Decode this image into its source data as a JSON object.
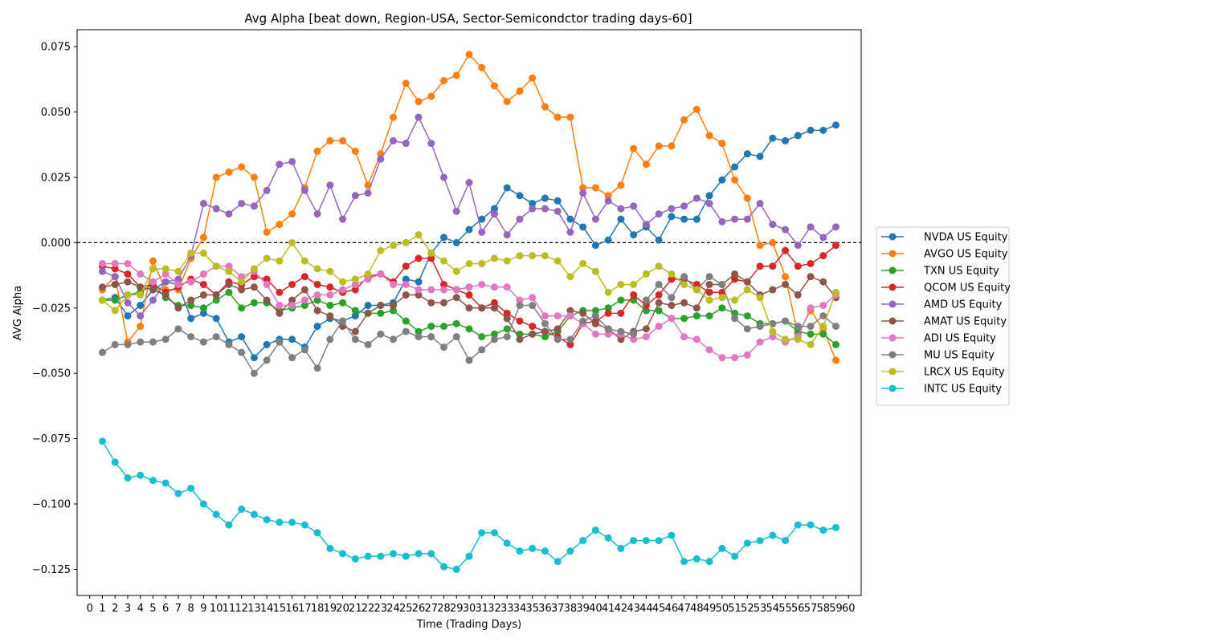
{
  "chart_data": {
    "type": "line",
    "title": "Avg Alpha [beat down, Region-USA, Sector-Semicondctor trading days-60]",
    "xlabel": "Time (Trading Days)",
    "ylabel": "AVG Alpha",
    "xlim": [
      -1,
      61
    ],
    "ylim": [
      -0.135,
      0.0815
    ],
    "xticks": [
      0,
      1,
      2,
      3,
      4,
      5,
      6,
      7,
      8,
      9,
      10,
      11,
      12,
      13,
      14,
      15,
      16,
      17,
      18,
      19,
      20,
      21,
      22,
      23,
      24,
      25,
      26,
      27,
      28,
      29,
      30,
      31,
      32,
      33,
      34,
      35,
      36,
      37,
      38,
      39,
      40,
      41,
      42,
      43,
      44,
      45,
      46,
      47,
      48,
      49,
      50,
      51,
      52,
      53,
      54,
      55,
      56,
      57,
      58,
      59,
      60
    ],
    "yticks": [
      0.075,
      0.05,
      0.025,
      0.0,
      -0.025,
      -0.05,
      -0.075,
      -0.1,
      -0.125
    ],
    "ytick_labels": [
      "0.075",
      "0.050",
      "0.025",
      "0.000",
      "−0.025",
      "−0.050",
      "−0.075",
      "−0.100",
      "−0.125"
    ],
    "reference_line": {
      "y": 0,
      "style": "dashed",
      "color": "#000000"
    },
    "legend_position": "right",
    "grid": false,
    "x": [
      1,
      2,
      3,
      4,
      5,
      6,
      7,
      8,
      9,
      10,
      11,
      12,
      13,
      14,
      15,
      16,
      17,
      18,
      19,
      20,
      21,
      22,
      23,
      24,
      25,
      26,
      27,
      28,
      29,
      30,
      31,
      32,
      33,
      34,
      35,
      36,
      37,
      38,
      39,
      40,
      41,
      42,
      43,
      44,
      45,
      46,
      47,
      48,
      49,
      50,
      51,
      52,
      53,
      54,
      55,
      56,
      57,
      58,
      59
    ],
    "series": [
      {
        "name": "NVDA US Equity",
        "color": "#1f77b4",
        "values": [
          -0.022,
          -0.021,
          -0.028,
          -0.024,
          -0.018,
          -0.015,
          -0.016,
          -0.029,
          -0.027,
          -0.029,
          -0.038,
          -0.036,
          -0.044,
          -0.039,
          -0.037,
          -0.037,
          -0.04,
          -0.032,
          -0.029,
          -0.03,
          -0.028,
          -0.024,
          -0.024,
          -0.023,
          -0.014,
          -0.015,
          -0.004,
          0.002,
          0.0,
          0.005,
          0.009,
          0.013,
          0.021,
          0.018,
          0.015,
          0.017,
          0.016,
          0.009,
          0.006,
          -0.001,
          0.001,
          0.009,
          0.003,
          0.006,
          0.001,
          0.01,
          0.009,
          0.009,
          0.018,
          0.024,
          0.029,
          0.034,
          0.033,
          0.04,
          0.039,
          0.041,
          0.043,
          0.043,
          0.045
        ]
      },
      {
        "name": "AVGO US Equity",
        "color": "#ff7f0e",
        "values": [
          -0.018,
          -0.013,
          -0.038,
          -0.032,
          -0.007,
          -0.018,
          -0.018,
          -0.006,
          0.002,
          0.025,
          0.027,
          0.029,
          0.025,
          0.004,
          0.007,
          0.011,
          0.021,
          0.035,
          0.039,
          0.039,
          0.035,
          0.022,
          0.034,
          0.048,
          0.061,
          0.054,
          0.056,
          0.062,
          0.064,
          0.072,
          0.067,
          0.06,
          0.054,
          0.058,
          0.063,
          0.052,
          0.048,
          0.048,
          0.021,
          0.021,
          0.018,
          0.022,
          0.036,
          0.03,
          0.037,
          0.037,
          0.047,
          0.051,
          0.041,
          0.038,
          0.024,
          0.017,
          -0.001,
          0.0,
          -0.013,
          -0.035,
          -0.026,
          -0.033,
          -0.045
        ]
      },
      {
        "name": "TXN US Equity",
        "color": "#2ca02c",
        "values": [
          -0.022,
          -0.022,
          -0.02,
          -0.019,
          -0.016,
          -0.021,
          -0.024,
          -0.024,
          -0.025,
          -0.022,
          -0.019,
          -0.025,
          -0.023,
          -0.023,
          -0.026,
          -0.025,
          -0.024,
          -0.022,
          -0.024,
          -0.023,
          -0.026,
          -0.027,
          -0.027,
          -0.026,
          -0.03,
          -0.034,
          -0.032,
          -0.032,
          -0.031,
          -0.033,
          -0.036,
          -0.035,
          -0.033,
          -0.035,
          -0.035,
          -0.036,
          -0.034,
          -0.028,
          -0.026,
          -0.026,
          -0.025,
          -0.022,
          -0.022,
          -0.026,
          -0.026,
          -0.029,
          -0.029,
          -0.028,
          -0.028,
          -0.025,
          -0.027,
          -0.028,
          -0.031,
          -0.031,
          -0.03,
          -0.034,
          -0.035,
          -0.035,
          -0.039
        ]
      },
      {
        "name": "QCOM US Equity",
        "color": "#d62728",
        "values": [
          -0.009,
          -0.01,
          -0.012,
          -0.017,
          -0.016,
          -0.019,
          -0.017,
          -0.014,
          -0.016,
          -0.02,
          -0.015,
          -0.016,
          -0.013,
          -0.014,
          -0.019,
          -0.016,
          -0.013,
          -0.016,
          -0.017,
          -0.019,
          -0.018,
          -0.013,
          -0.012,
          -0.015,
          -0.009,
          -0.006,
          -0.006,
          -0.016,
          -0.018,
          -0.02,
          -0.025,
          -0.023,
          -0.027,
          -0.03,
          -0.032,
          -0.034,
          -0.036,
          -0.039,
          -0.031,
          -0.03,
          -0.027,
          -0.027,
          -0.02,
          -0.024,
          -0.02,
          -0.014,
          -0.014,
          -0.016,
          -0.019,
          -0.019,
          -0.014,
          -0.015,
          -0.009,
          -0.009,
          -0.003,
          -0.009,
          -0.008,
          -0.005,
          -0.001
        ]
      },
      {
        "name": "AMD US Equity",
        "color": "#9467bd",
        "values": [
          -0.011,
          -0.013,
          -0.023,
          -0.028,
          -0.022,
          -0.015,
          -0.014,
          -0.005,
          0.015,
          0.013,
          0.011,
          0.015,
          0.014,
          0.02,
          0.03,
          0.031,
          0.02,
          0.011,
          0.022,
          0.009,
          0.018,
          0.019,
          0.032,
          0.039,
          0.038,
          0.048,
          0.038,
          0.025,
          0.012,
          0.023,
          0.004,
          0.011,
          0.003,
          0.009,
          0.013,
          0.013,
          0.012,
          0.004,
          0.019,
          0.009,
          0.016,
          0.013,
          0.014,
          0.007,
          0.011,
          0.013,
          0.014,
          0.017,
          0.015,
          0.008,
          0.009,
          0.009,
          0.015,
          0.007,
          0.005,
          -0.001,
          0.006,
          0.002,
          0.006
        ]
      },
      {
        "name": "AMAT US Equity",
        "color": "#8c564b",
        "values": [
          -0.017,
          -0.016,
          -0.015,
          -0.017,
          -0.018,
          -0.02,
          -0.025,
          -0.022,
          -0.02,
          -0.02,
          -0.016,
          -0.018,
          -0.017,
          -0.022,
          -0.027,
          -0.022,
          -0.018,
          -0.026,
          -0.028,
          -0.032,
          -0.034,
          -0.027,
          -0.024,
          -0.024,
          -0.02,
          -0.02,
          -0.023,
          -0.023,
          -0.021,
          -0.025,
          -0.025,
          -0.025,
          -0.029,
          -0.037,
          -0.035,
          -0.034,
          -0.033,
          -0.026,
          -0.027,
          -0.031,
          -0.033,
          -0.037,
          -0.034,
          -0.033,
          -0.023,
          -0.024,
          -0.023,
          -0.025,
          -0.016,
          -0.016,
          -0.012,
          -0.015,
          -0.02,
          -0.018,
          -0.016,
          -0.02,
          -0.013,
          -0.015,
          -0.021
        ]
      },
      {
        "name": "ADI US Equity",
        "color": "#e377c2",
        "values": [
          -0.008,
          -0.008,
          -0.008,
          -0.012,
          -0.015,
          -0.012,
          -0.016,
          -0.015,
          -0.012,
          -0.009,
          -0.009,
          -0.013,
          -0.011,
          -0.016,
          -0.024,
          -0.024,
          -0.022,
          -0.02,
          -0.02,
          -0.018,
          -0.016,
          -0.014,
          -0.012,
          -0.016,
          -0.016,
          -0.018,
          -0.018,
          -0.018,
          -0.018,
          -0.017,
          -0.016,
          -0.017,
          -0.017,
          -0.022,
          -0.021,
          -0.028,
          -0.028,
          -0.028,
          -0.031,
          -0.035,
          -0.035,
          -0.035,
          -0.037,
          -0.036,
          -0.032,
          -0.029,
          -0.036,
          -0.037,
          -0.041,
          -0.044,
          -0.044,
          -0.043,
          -0.038,
          -0.036,
          -0.038,
          -0.036,
          -0.025,
          -0.024,
          -0.02
        ]
      },
      {
        "name": "MU US Equity",
        "color": "#7f7f7f",
        "values": [
          -0.042,
          -0.039,
          -0.039,
          -0.038,
          -0.038,
          -0.037,
          -0.033,
          -0.036,
          -0.038,
          -0.036,
          -0.039,
          -0.042,
          -0.05,
          -0.045,
          -0.038,
          -0.044,
          -0.041,
          -0.048,
          -0.037,
          -0.03,
          -0.037,
          -0.039,
          -0.035,
          -0.037,
          -0.034,
          -0.036,
          -0.036,
          -0.04,
          -0.036,
          -0.045,
          -0.041,
          -0.037,
          -0.036,
          -0.024,
          -0.024,
          -0.031,
          -0.037,
          -0.037,
          -0.03,
          -0.028,
          -0.033,
          -0.034,
          -0.035,
          -0.022,
          -0.016,
          -0.021,
          -0.013,
          -0.018,
          -0.013,
          -0.016,
          -0.029,
          -0.033,
          -0.032,
          -0.031,
          -0.03,
          -0.032,
          -0.032,
          -0.028,
          -0.032
        ]
      },
      {
        "name": "LRCX US Equity",
        "color": "#bcbd22",
        "values": [
          -0.022,
          -0.026,
          -0.02,
          -0.02,
          -0.01,
          -0.01,
          -0.011,
          -0.004,
          -0.004,
          -0.009,
          -0.011,
          -0.015,
          -0.01,
          -0.006,
          -0.007,
          0.0,
          -0.007,
          -0.01,
          -0.011,
          -0.015,
          -0.014,
          -0.012,
          -0.003,
          -0.001,
          0.0,
          0.003,
          -0.004,
          -0.007,
          -0.011,
          -0.008,
          -0.008,
          -0.006,
          -0.007,
          -0.005,
          -0.005,
          -0.005,
          -0.007,
          -0.013,
          -0.008,
          -0.011,
          -0.019,
          -0.016,
          -0.016,
          -0.012,
          -0.009,
          -0.012,
          -0.016,
          -0.018,
          -0.022,
          -0.021,
          -0.022,
          -0.018,
          -0.021,
          -0.034,
          -0.037,
          -0.037,
          -0.039,
          -0.032,
          -0.019
        ]
      },
      {
        "name": "INTC US Equity",
        "color": "#17becf",
        "values": [
          -0.076,
          -0.084,
          -0.09,
          -0.089,
          -0.091,
          -0.092,
          -0.096,
          -0.094,
          -0.1,
          -0.104,
          -0.108,
          -0.102,
          -0.104,
          -0.106,
          -0.107,
          -0.107,
          -0.108,
          -0.111,
          -0.117,
          -0.119,
          -0.121,
          -0.12,
          -0.12,
          -0.119,
          -0.12,
          -0.119,
          -0.119,
          -0.124,
          -0.125,
          -0.12,
          -0.111,
          -0.111,
          -0.115,
          -0.118,
          -0.117,
          -0.118,
          -0.122,
          -0.118,
          -0.114,
          -0.11,
          -0.113,
          -0.117,
          -0.114,
          -0.114,
          -0.114,
          -0.112,
          -0.122,
          -0.121,
          -0.122,
          -0.117,
          -0.12,
          -0.115,
          -0.114,
          -0.112,
          -0.114,
          -0.108,
          -0.108,
          -0.11,
          -0.109
        ]
      }
    ]
  }
}
